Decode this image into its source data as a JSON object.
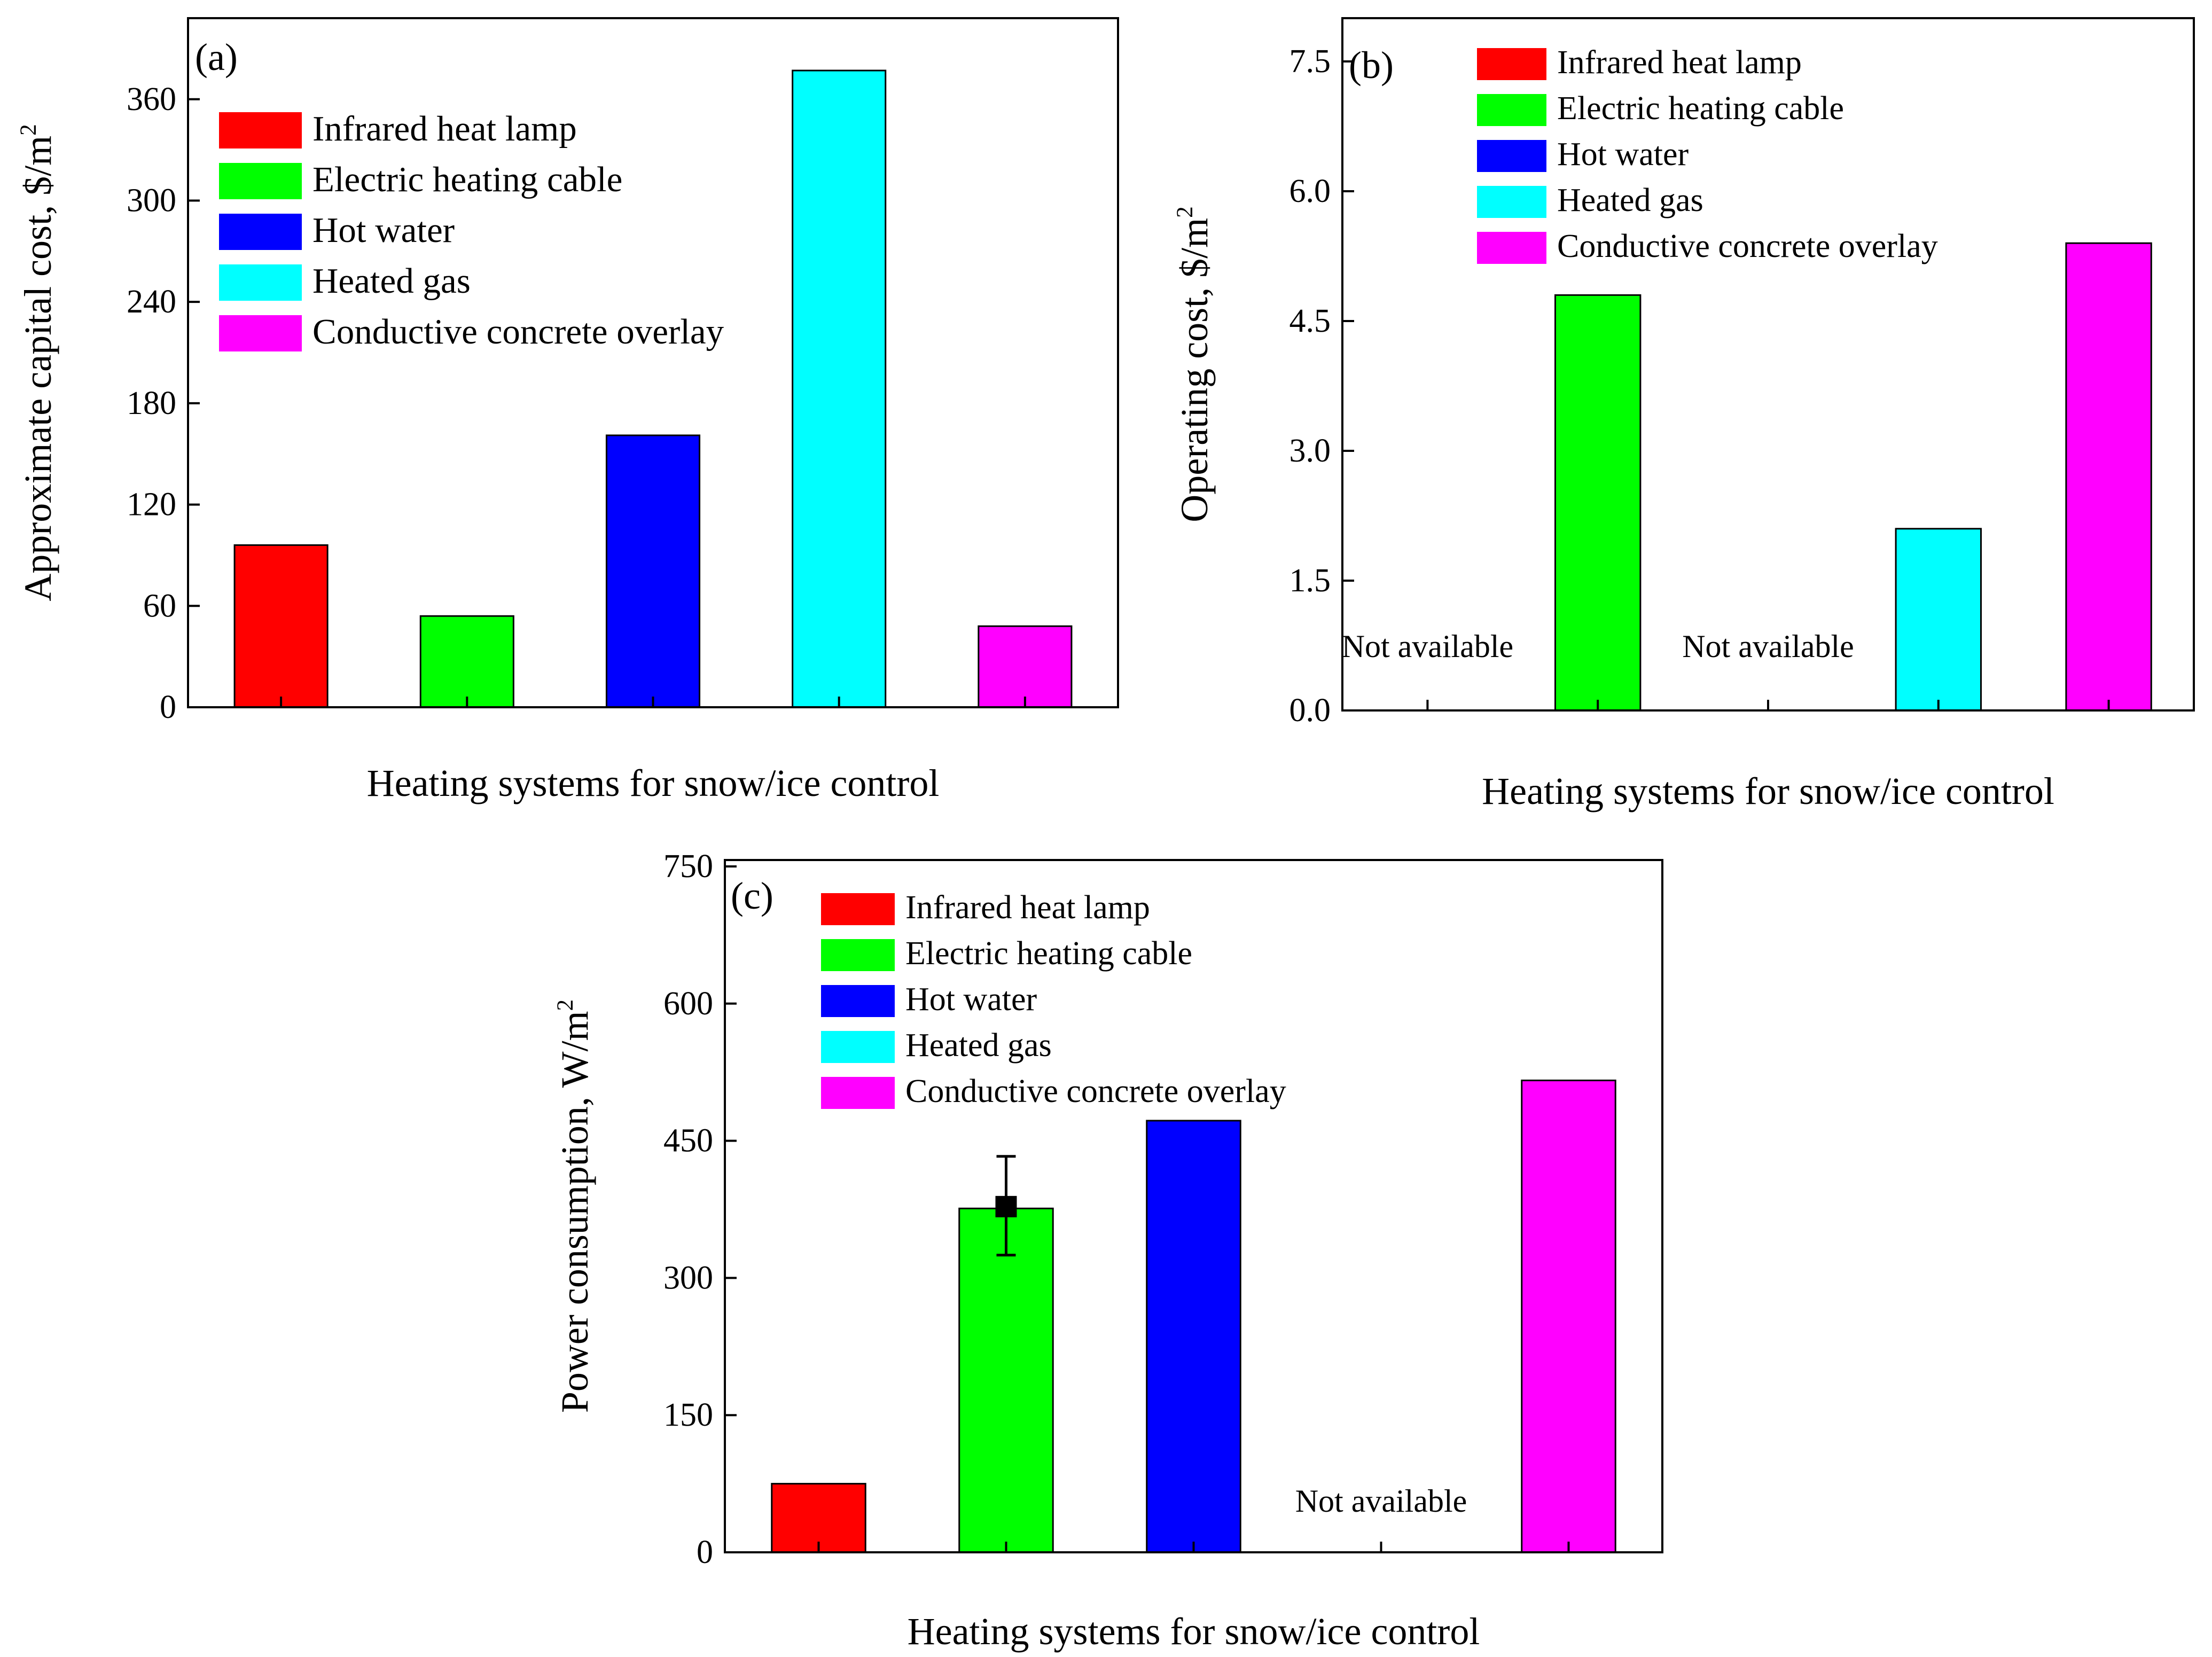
{
  "legend_items": [
    {
      "label": "Infrared heat lamp",
      "color": "#ff0000"
    },
    {
      "label": "Electric heating cable",
      "color": "#00ff00"
    },
    {
      "label": "Hot water",
      "color": "#0000ff"
    },
    {
      "label": "Heated gas",
      "color": "#00ffff"
    },
    {
      "label": "Conductive concrete overlay",
      "color": "#ff00ff"
    }
  ],
  "chart_data": [
    {
      "type": "bar",
      "panel_label": "(a)",
      "ylabel": "Approximate capital cost, $/m",
      "ylabel_sup": "2",
      "xlabel": "Heating systems for snow/ice control",
      "ylim": [
        0,
        408
      ],
      "yticks": [
        0,
        60,
        120,
        180,
        240,
        300,
        360
      ],
      "categories": [
        "Infrared heat lamp",
        "Electric heating cable",
        "Hot water",
        "Heated gas",
        "Conductive concrete overlay"
      ],
      "values": [
        96,
        54,
        161,
        377,
        48
      ],
      "not_available": []
    },
    {
      "type": "bar",
      "panel_label": "(b)",
      "ylabel": "Operating cost, $/m",
      "ylabel_sup": "2",
      "xlabel": "Heating systems for snow/ice control",
      "ylim": [
        0,
        8
      ],
      "yticks": [
        0.0,
        1.5,
        3.0,
        4.5,
        6.0,
        7.5
      ],
      "ytick_labels": [
        "0.0",
        "1.5",
        "3.0",
        "4.5",
        "6.0",
        "7.5"
      ],
      "categories": [
        "Infrared heat lamp",
        "Electric heating cable",
        "Hot water",
        "Heated gas",
        "Conductive concrete overlay"
      ],
      "values": [
        null,
        4.8,
        null,
        2.1,
        5.4
      ],
      "not_available": [
        0,
        2
      ],
      "not_available_label": "Not available"
    },
    {
      "type": "bar",
      "panel_label": "(c)",
      "ylabel": "Power consumption, W/m",
      "ylabel_sup": "2",
      "xlabel": "Heating systems for snow/ice control",
      "ylim": [
        0,
        757
      ],
      "yticks": [
        0,
        150,
        300,
        450,
        600,
        750
      ],
      "categories": [
        "Infrared heat lamp",
        "Electric heating cable",
        "Hot water",
        "Heated gas",
        "Conductive concrete overlay"
      ],
      "values": [
        75,
        376,
        472,
        null,
        516
      ],
      "not_available": [
        3
      ],
      "not_available_label": "Not available",
      "error_bars": [
        {
          "index": 1,
          "center": 378,
          "low": 325,
          "high": 433
        }
      ]
    }
  ]
}
